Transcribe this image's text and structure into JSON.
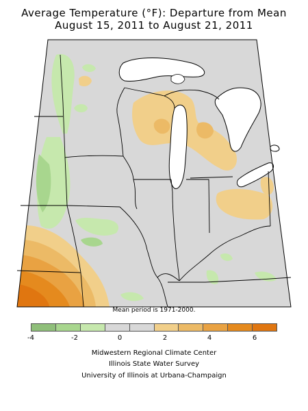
{
  "title_line1": "Average Temperature (°F): Departure from Mean",
  "title_line2": "August 15, 2011 to August 21, 2011",
  "mean_note": "Mean period is 1971-2000.",
  "legend": {
    "colors": [
      "#8fbf7a",
      "#a8d68e",
      "#c6e8ad",
      "#d8d8d8",
      "#d8d8d8",
      "#f1cf8a",
      "#ecba66",
      "#e9a242",
      "#e58a1e",
      "#e07610"
    ],
    "ticks": [
      "-4",
      "-2",
      "0",
      "2",
      "4",
      "6"
    ]
  },
  "credits": {
    "line1": "Midwestern Regional Climate Center",
    "line2": "Illinois State Water Survey",
    "line3": "University of Illinois at Urbana-Champaign"
  },
  "colors": {
    "background_gray": "#d8d8d8",
    "lake_white": "#ffffff",
    "cool_light": "#c6e8ad",
    "cool_mid": "#a8d68e",
    "warm_light": "#f1cf8a",
    "warm_mid": "#ecba66",
    "warm_strong": "#e58a1e",
    "warm_max": "#e07610"
  }
}
